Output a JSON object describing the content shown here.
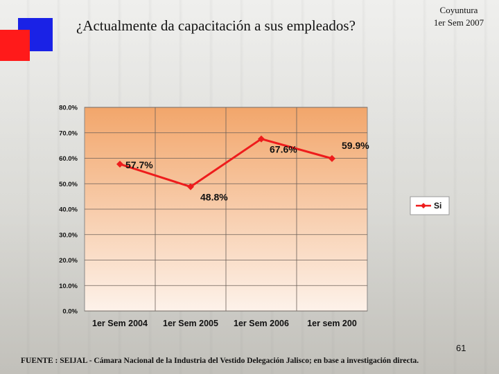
{
  "slide": {
    "title": "¿Actualmente da capacitación a sus empleados?",
    "coyuntura_line1": "Coyuntura",
    "coyuntura_line2": "1er Sem 2007",
    "page_number": "61",
    "source": "FUENTE :  SEIJAL - Cámara Nacional de la Industria del Vestido Delegación Jalisco;  en base a investigación directa."
  },
  "colors": {
    "plot_top": "#f2a66b",
    "plot_bottom": "#fdf2ea",
    "line": "#ee1c1c",
    "deco_blue": "#1a22e6",
    "deco_red": "#ff1a1a"
  },
  "chart_data": {
    "type": "line",
    "title": "",
    "xlabel": "",
    "ylabel": "",
    "categories": [
      "1er Sem 2004",
      "1er Sem 2005",
      "1er Sem 2006",
      "1er sem 200"
    ],
    "series": [
      {
        "name": "Si",
        "values": [
          57.7,
          48.8,
          67.6,
          59.9
        ],
        "labels": [
          "57.7%",
          "48.8%",
          "67.6%",
          "59.9%"
        ]
      }
    ],
    "ylim": [
      0,
      80
    ],
    "yticks": [
      "0.0%",
      "10.0%",
      "20.0%",
      "30.0%",
      "40.0%",
      "50.0%",
      "60.0%",
      "70.0%",
      "80.0%"
    ],
    "grid": true,
    "legend_position": "right"
  }
}
